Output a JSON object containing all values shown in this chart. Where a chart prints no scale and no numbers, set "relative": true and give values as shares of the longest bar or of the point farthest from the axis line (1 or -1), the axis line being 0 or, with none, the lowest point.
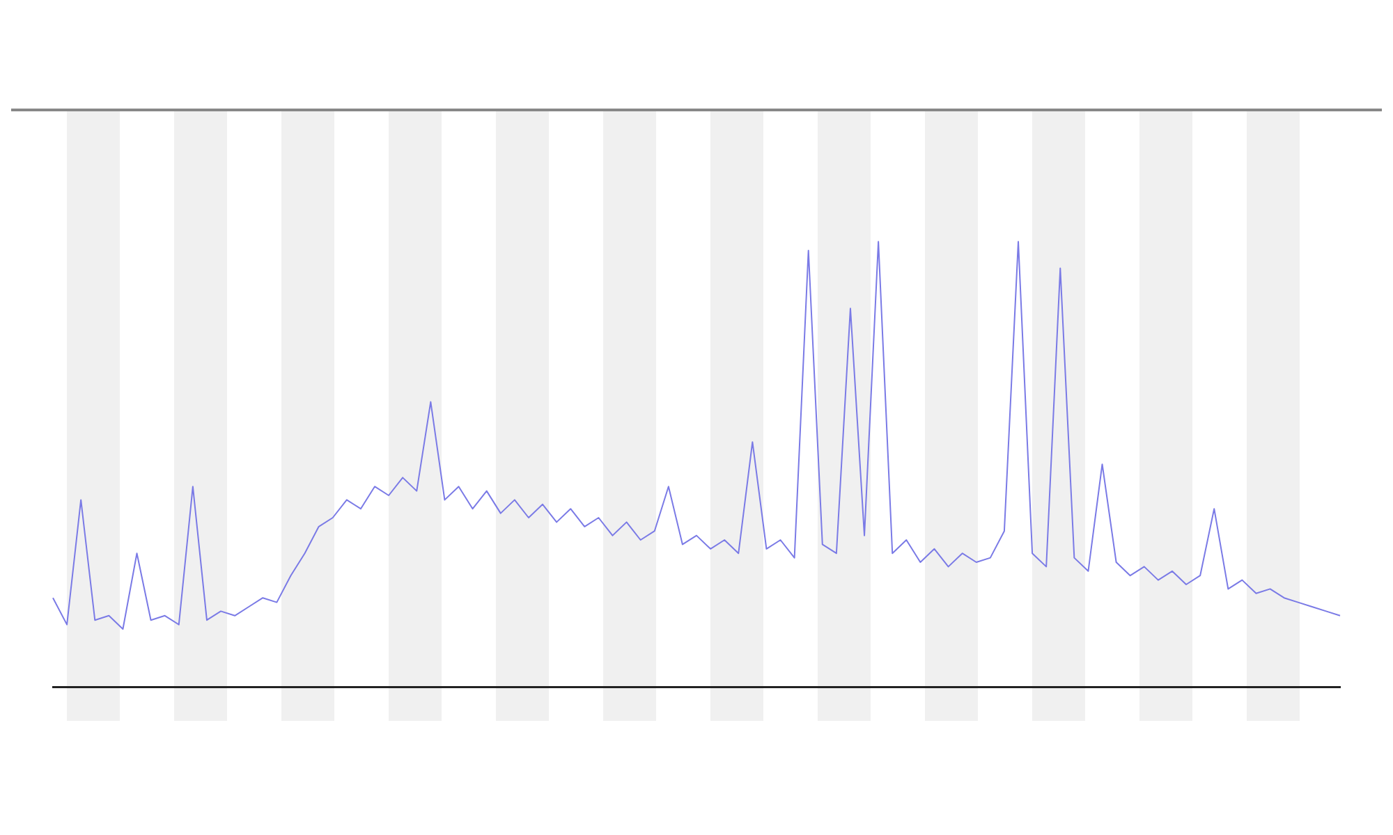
{
  "chart_data": {
    "type": "line",
    "relative": true,
    "grid": false,
    "legend": false,
    "marker": "none",
    "categories": [
      null,
      null,
      null,
      null,
      null,
      null,
      null,
      null,
      null,
      null,
      null,
      null,
      null,
      null,
      null,
      null,
      null,
      null,
      null,
      null,
      null,
      null,
      null,
      null,
      null,
      null,
      null,
      null,
      null,
      null,
      null,
      null,
      null,
      null,
      null,
      null,
      null,
      null,
      null,
      null,
      null,
      null,
      null,
      null,
      null,
      null,
      null,
      null,
      null,
      null,
      null,
      null,
      null,
      null,
      null,
      null,
      null,
      null,
      null,
      null,
      null,
      null,
      null,
      null,
      null,
      null,
      null,
      null,
      null,
      null,
      null,
      null,
      null,
      null,
      null,
      null,
      null,
      null,
      null,
      null,
      null,
      null,
      null,
      null,
      null,
      null,
      null,
      null,
      null,
      null,
      null,
      null,
      null
    ],
    "series": [
      {
        "color": "#7a7ae6",
        "values": [
          0.2,
          0.14,
          0.42,
          0.15,
          0.16,
          0.13,
          0.3,
          0.15,
          0.16,
          0.14,
          0.45,
          0.15,
          0.17,
          0.16,
          0.18,
          0.2,
          0.19,
          0.25,
          0.3,
          0.36,
          0.38,
          0.42,
          0.4,
          0.45,
          0.43,
          0.47,
          0.44,
          0.64,
          0.42,
          0.45,
          0.4,
          0.44,
          0.39,
          0.42,
          0.38,
          0.41,
          0.37,
          0.4,
          0.36,
          0.38,
          0.34,
          0.37,
          0.33,
          0.35,
          0.45,
          0.32,
          0.34,
          0.31,
          0.33,
          0.3,
          0.55,
          0.31,
          0.33,
          0.29,
          0.98,
          0.32,
          0.3,
          0.85,
          0.34,
          1,
          0.3,
          0.33,
          0.28,
          0.31,
          0.27,
          0.3,
          0.28,
          0.29,
          0.35,
          1,
          0.3,
          0.27,
          0.94,
          0.29,
          0.26,
          0.5,
          0.28,
          0.25,
          0.27,
          0.24,
          0.26,
          0.23,
          0.25,
          0.4,
          0.22,
          0.24,
          0.21,
          0.22,
          0.2,
          0.19,
          0.18,
          0.17,
          0.16
        ]
      }
    ]
  }
}
